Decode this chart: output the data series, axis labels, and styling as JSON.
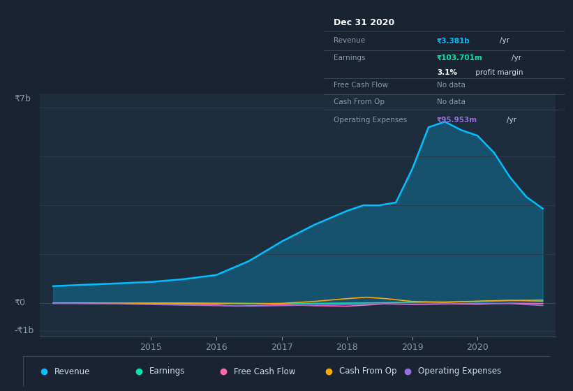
{
  "bg_color": "#1a2332",
  "plot_bg_color": "#1e2d3d",
  "grid_color": "#2a3a4a",
  "title_box": {
    "date": "Dec 31 2020",
    "revenue": "₹3.381b /yr",
    "earnings": "₹103.701m /yr",
    "profit_margin": "3.1% profit margin",
    "free_cash_flow": "No data",
    "cash_from_op": "No data",
    "operating_expenses": "₹95.953m /yr"
  },
  "ylabel_top": "₹7b",
  "ylabel_zero": "₹0",
  "ylabel_bot": "-₹1b",
  "x_ticks": [
    2015,
    2016,
    2017,
    2018,
    2019,
    2020
  ],
  "legend": [
    {
      "label": "Revenue",
      "color": "#00bfff"
    },
    {
      "label": "Earnings",
      "color": "#00e5b0"
    },
    {
      "label": "Free Cash Flow",
      "color": "#ff69b4"
    },
    {
      "label": "Cash From Op",
      "color": "#ffa500"
    },
    {
      "label": "Operating Expenses",
      "color": "#9370db"
    }
  ],
  "revenue": {
    "x": [
      2013.5,
      2014.0,
      2014.5,
      2015.0,
      2015.5,
      2016.0,
      2016.5,
      2017.0,
      2017.5,
      2018.0,
      2018.25,
      2018.5,
      2018.75,
      2019.0,
      2019.25,
      2019.5,
      2019.75,
      2020.0,
      2020.25,
      2020.5,
      2020.75,
      2021.0
    ],
    "y": [
      0.6,
      0.65,
      0.7,
      0.75,
      0.85,
      1.0,
      1.5,
      2.2,
      2.8,
      3.3,
      3.5,
      3.5,
      3.6,
      4.8,
      6.3,
      6.5,
      6.2,
      6.0,
      5.4,
      4.5,
      3.8,
      3.381
    ],
    "color": "#00bfff",
    "fill": true,
    "fill_color": "#00bfff",
    "fill_alpha": 0.25
  },
  "earnings": {
    "x": [
      2013.5,
      2014.0,
      2014.5,
      2015.0,
      2015.5,
      2016.0,
      2016.5,
      2017.0,
      2017.5,
      2018.0,
      2018.5,
      2019.0,
      2019.5,
      2020.0,
      2020.5,
      2021.0
    ],
    "y": [
      -0.02,
      -0.01,
      -0.01,
      -0.005,
      -0.005,
      -0.01,
      -0.02,
      -0.03,
      -0.02,
      -0.01,
      0.0,
      0.02,
      0.03,
      0.05,
      0.08,
      0.104
    ],
    "color": "#00e5b0"
  },
  "free_cash_flow": {
    "x": [
      2013.5,
      2014.0,
      2014.5,
      2015.0,
      2015.5,
      2016.0,
      2016.3,
      2016.6,
      2017.0,
      2017.5,
      2018.0,
      2018.3,
      2018.6,
      2019.0,
      2019.5,
      2020.0,
      2020.5,
      2021.0
    ],
    "y": [
      -0.01,
      -0.01,
      -0.02,
      -0.03,
      -0.05,
      -0.08,
      -0.12,
      -0.1,
      -0.07,
      -0.1,
      -0.12,
      -0.08,
      -0.03,
      -0.06,
      -0.04,
      -0.05,
      -0.02,
      -0.03
    ],
    "color": "#ff69b4"
  },
  "cash_from_op": {
    "x": [
      2013.5,
      2014.0,
      2014.5,
      2015.0,
      2015.5,
      2016.0,
      2016.5,
      2017.0,
      2017.5,
      2018.0,
      2018.3,
      2018.6,
      2019.0,
      2019.5,
      2020.0,
      2020.5,
      2021.0
    ],
    "y": [
      -0.01,
      -0.01,
      -0.02,
      -0.02,
      -0.02,
      -0.03,
      -0.04,
      -0.02,
      0.05,
      0.15,
      0.2,
      0.15,
      0.05,
      0.02,
      0.06,
      0.09,
      0.06
    ],
    "color": "#ffa500"
  },
  "operating_expenses": {
    "x": [
      2013.5,
      2014.0,
      2014.5,
      2015.0,
      2015.5,
      2016.0,
      2016.5,
      2017.0,
      2017.5,
      2018.0,
      2018.5,
      2019.0,
      2019.5,
      2020.0,
      2020.5,
      2021.0
    ],
    "y": [
      -0.02,
      -0.03,
      -0.04,
      -0.06,
      -0.08,
      -0.1,
      -0.12,
      -0.1,
      -0.08,
      -0.06,
      -0.04,
      -0.05,
      -0.04,
      -0.02,
      -0.03,
      -0.096
    ],
    "color": "#9370db"
  },
  "ylim": [
    -1.2,
    7.5
  ],
  "xlim": [
    2013.3,
    2021.2
  ]
}
